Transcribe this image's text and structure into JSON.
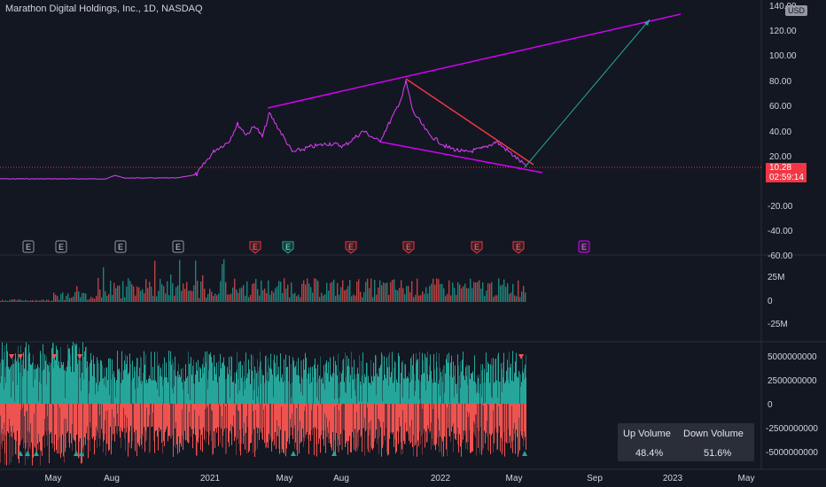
{
  "header": {
    "title": "Marathon Digital Holdings, Inc., 1D, NASDAQ",
    "currency_badge": "USD"
  },
  "price_axis": {
    "labels": [
      "140.00",
      "120.00",
      "100.00",
      "80.00",
      "60.00",
      "40.00",
      "20.00",
      "-20.00",
      "-40.00",
      "-60.00"
    ],
    "last_price": "10.28",
    "countdown": "02:59:14"
  },
  "volume_axis": {
    "labels": [
      "25M",
      "0",
      "-25M"
    ]
  },
  "updown_axis": {
    "labels": [
      "5000000000",
      "2500000000",
      "0",
      "-2500000000",
      "-5000000000"
    ]
  },
  "time_axis": {
    "labels": [
      "May",
      "Aug",
      "2021",
      "May",
      "Aug",
      "2022",
      "May",
      "Sep",
      "2023",
      "May"
    ]
  },
  "earnings_markers": [
    {
      "label": "E",
      "type": "past"
    },
    {
      "label": "E",
      "type": "past"
    },
    {
      "label": "E",
      "type": "past"
    },
    {
      "label": "E",
      "type": "past"
    },
    {
      "label": "E",
      "type": "miss"
    },
    {
      "label": "E",
      "type": "beat"
    },
    {
      "label": "E",
      "type": "miss"
    },
    {
      "label": "E",
      "type": "miss"
    },
    {
      "label": "E",
      "type": "miss"
    },
    {
      "label": "E",
      "type": "miss"
    },
    {
      "label": "E",
      "type": "future"
    }
  ],
  "volume_table": {
    "up_label": "Up Volume",
    "down_label": "Down Volume",
    "up_value": "48.4%",
    "down_value": "51.6%"
  },
  "colors": {
    "background": "#131722",
    "price_line": "#e040fb",
    "trendline": "#d500f9",
    "red_line": "#f23645",
    "projection": "#26a69a",
    "up": "#26a69a",
    "down": "#ef5350",
    "axis_text": "#d1d4dc"
  }
}
